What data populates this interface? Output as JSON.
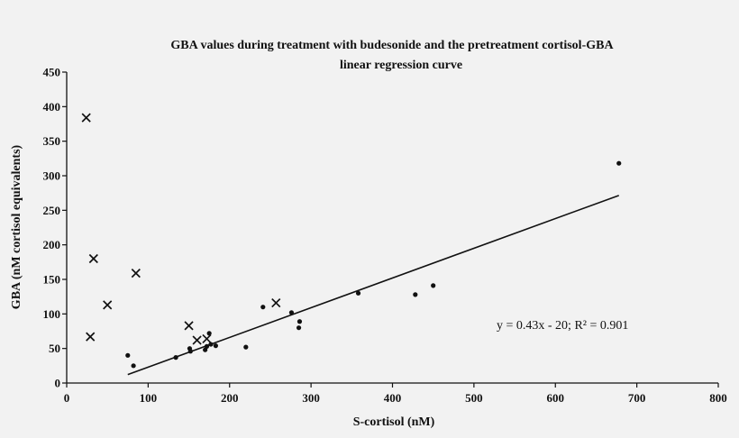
{
  "chart_data": {
    "type": "scatter",
    "title_line1": "GBA values during treatment with budesonide and the pretreatment cortisol-GBA",
    "title_line2": "linear regression curve",
    "xlabel": "S-cortisol (nM)",
    "ylabel": "GBA (nM cortisol equivalents)",
    "xlim": [
      0,
      800
    ],
    "ylim": [
      0,
      450
    ],
    "x_ticks": [
      0,
      100,
      200,
      300,
      400,
      500,
      600,
      700,
      800
    ],
    "y_ticks": [
      0,
      50,
      100,
      150,
      200,
      250,
      300,
      350,
      400,
      450
    ],
    "grid": false,
    "legend": "none",
    "annotation": "y = 0.43x - 20; R² = 0.901",
    "regression": {
      "slope": 0.43,
      "intercept": -20,
      "x_range": [
        75,
        678
      ]
    },
    "series": [
      {
        "marker": "dot",
        "points": [
          [
            75,
            40
          ],
          [
            82,
            25
          ],
          [
            134,
            37
          ],
          [
            151,
            50
          ],
          [
            152,
            46
          ],
          [
            170,
            48
          ],
          [
            172,
            53
          ],
          [
            175,
            72
          ],
          [
            177,
            56
          ],
          [
            183,
            54
          ],
          [
            220,
            52
          ],
          [
            241,
            110
          ],
          [
            276,
            102
          ],
          [
            285,
            80
          ],
          [
            286,
            89
          ],
          [
            358,
            130
          ],
          [
            428,
            128
          ],
          [
            450,
            141
          ],
          [
            678,
            318
          ]
        ]
      },
      {
        "marker": "cross",
        "points": [
          [
            24,
            384
          ],
          [
            29,
            67
          ],
          [
            33,
            180
          ],
          [
            50,
            113
          ],
          [
            85,
            159
          ],
          [
            150,
            83
          ],
          [
            160,
            62
          ],
          [
            172,
            64
          ],
          [
            257,
            116
          ]
        ]
      }
    ]
  },
  "colors": {
    "marks": "#111111",
    "background": "#f2f2f2"
  }
}
